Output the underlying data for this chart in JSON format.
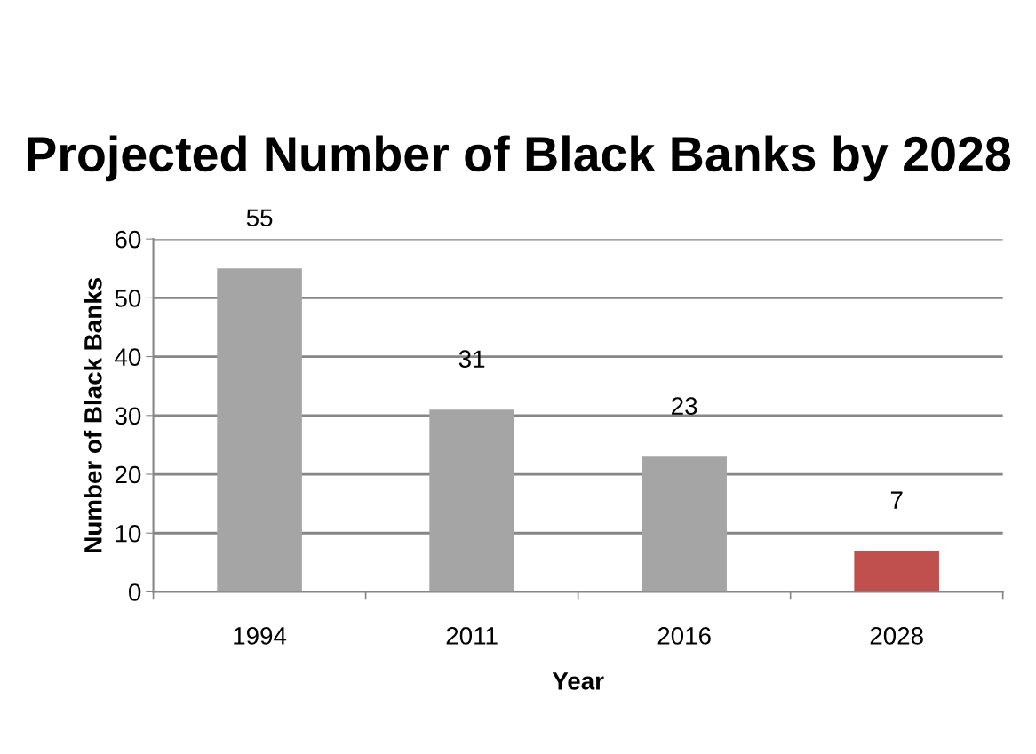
{
  "chart_data": {
    "type": "bar",
    "title": "Projected Number of Black Banks by 2028",
    "xlabel": "Year",
    "ylabel": "Number of Black Banks",
    "categories": [
      "1994",
      "2011",
      "2016",
      "2028"
    ],
    "values": [
      55,
      31,
      23,
      7
    ],
    "colors": [
      "#a5a5a5",
      "#a5a5a5",
      "#a5a5a5",
      "#c0504d"
    ],
    "ylim": [
      0,
      60
    ],
    "yticks": [
      0,
      10,
      20,
      30,
      40,
      50,
      60
    ],
    "grid": "y",
    "data_labels": true,
    "legend": false
  }
}
